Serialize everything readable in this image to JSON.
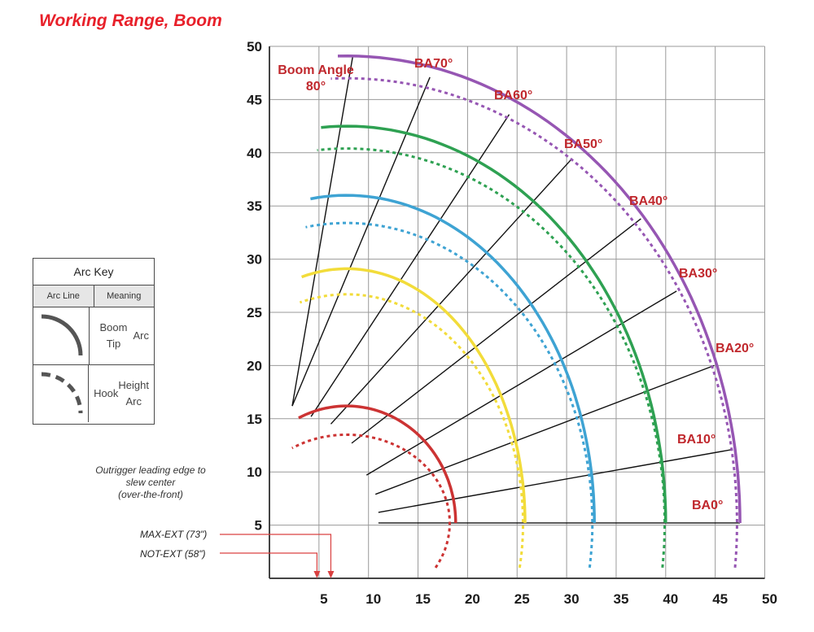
{
  "title": "Working Range, Boom",
  "chart_data": {
    "type": "line",
    "xlim": [
      0,
      50
    ],
    "ylim": [
      0,
      50
    ],
    "x_ticks": [
      "5",
      "10",
      "15",
      "20",
      "25",
      "30",
      "35",
      "40",
      "45",
      "50"
    ],
    "y_ticks": [
      "5",
      "10",
      "15",
      "20",
      "25",
      "30",
      "35",
      "40",
      "45",
      "50"
    ],
    "grid": true,
    "pivot": [
      7.8,
      5.2
    ],
    "boom_lines": [
      {
        "label": "BA0°",
        "angle": 0,
        "inner": [
          11,
          5.2
        ],
        "outer": [
          47.5,
          5.2
        ]
      },
      {
        "label": "BA10°",
        "angle": 10,
        "inner": [
          11,
          6.2
        ],
        "outer": [
          46.7,
          12.1
        ]
      },
      {
        "label": "BA20°",
        "angle": 20,
        "inner": [
          10.7,
          7.9
        ],
        "outer": [
          44.9,
          20.0
        ]
      },
      {
        "label": "BA30°",
        "angle": 30,
        "inner": [
          9.8,
          9.7
        ],
        "outer": [
          41.1,
          27.0
        ]
      },
      {
        "label": "BA40°",
        "angle": 40,
        "inner": [
          8.3,
          12.7
        ],
        "outer": [
          37.5,
          33.8
        ]
      },
      {
        "label": "BA50°",
        "angle": 50,
        "inner": [
          6.2,
          14.5
        ],
        "outer": [
          30.4,
          39.3
        ]
      },
      {
        "label": "BA60°",
        "angle": 60,
        "inner": [
          4.2,
          15.2
        ],
        "outer": [
          24.2,
          43.6
        ]
      },
      {
        "label": "BA70°",
        "angle": 70,
        "inner": [
          2.3,
          16.2
        ],
        "outer": [
          16.2,
          47.1
        ]
      },
      {
        "label": "Boom Angle 80°",
        "angle": 80,
        "inner": [
          2.3,
          16.2
        ],
        "outer": [
          8.4,
          49.0
        ]
      }
    ],
    "arcs": [
      {
        "name": "red",
        "color": "#cc3333",
        "tip_radius": 11,
        "tip_x_at_5": 18.8,
        "tip_top": [
          2.4,
          16.2
        ],
        "hook_x_at_4": 18.2,
        "hook_top": [
          1.3,
          13.5
        ]
      },
      {
        "name": "yellow",
        "color": "#f2dc3a",
        "tip_radius": 18,
        "tip_x_at_5": 25.8,
        "tip_top": [
          3.1,
          29.1
        ],
        "hook_x_at_4": 25.6,
        "hook_top": [
          2.9,
          26.7
        ]
      },
      {
        "name": "blue",
        "color": "#3ea3d3",
        "tip_radius": 25,
        "tip_x_at_5": 32.8,
        "tip_top": [
          4.1,
          36.0
        ],
        "hook_x_at_4": 32.6,
        "hook_top": [
          3.6,
          33.4
        ]
      },
      {
        "name": "green",
        "color": "#2ea152",
        "tip_radius": 32,
        "tip_x_at_5": 40.0,
        "tip_top": [
          5.2,
          42.5
        ],
        "hook_x_at_4": 39.9,
        "hook_top": [
          4.8,
          40.4
        ]
      },
      {
        "name": "purple",
        "color": "#9656b3",
        "tip_radius": 39.5,
        "tip_x_at_5": 47.5,
        "tip_top": [
          6.9,
          49.1
        ],
        "hook_x_at_4": 47.2,
        "hook_top": [
          6.2,
          47.0
        ]
      }
    ],
    "annotations": {
      "max_ext": {
        "label": "MAX-EXT (73\")",
        "x": 6.2
      },
      "not_ext": {
        "label": "NOT-EXT (58\")",
        "x": 4.8
      }
    }
  },
  "arc_key": {
    "title": "Arc Key",
    "col_line": "Arc Line",
    "col_meaning": "Meaning",
    "rows": [
      {
        "meaning_line1": "Boom Tip",
        "meaning_line2": "Arc"
      },
      {
        "meaning_line1": "Hook",
        "meaning_line2": "Height Arc"
      }
    ]
  },
  "outrigger_note": [
    "Outrigger leading edge to",
    "slew center",
    "(over-the-front)"
  ],
  "colors": {
    "title": "#e8202a",
    "labels": "#c0282d",
    "grid": "#9a9a9a",
    "arrows": "#d94040"
  }
}
